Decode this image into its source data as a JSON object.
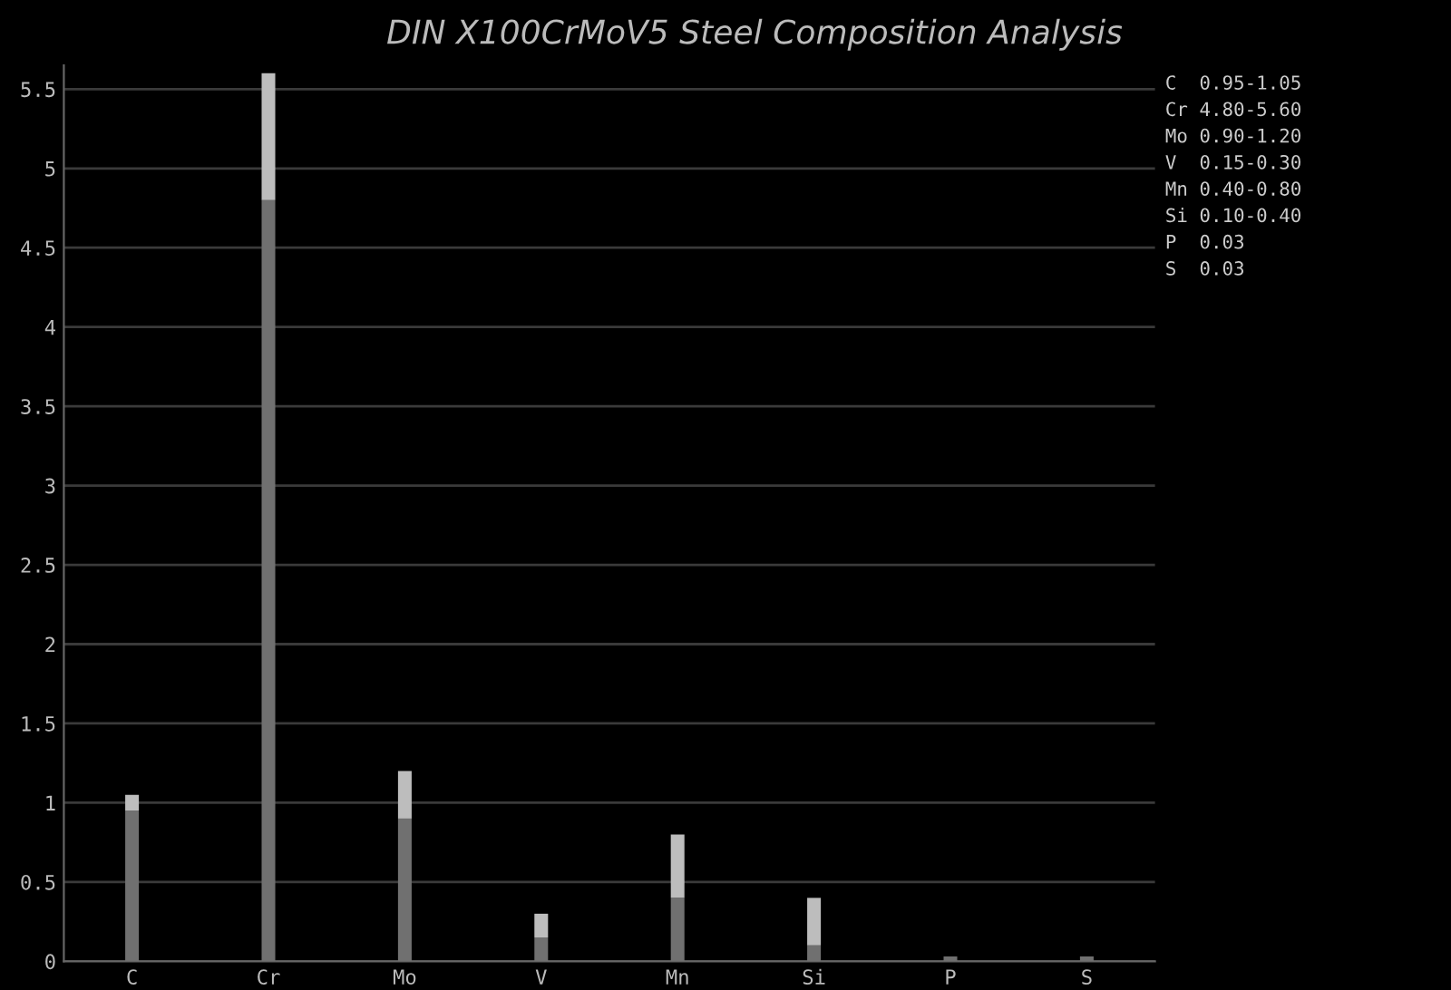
{
  "chart_data": {
    "type": "bar",
    "title": "DIN X100CrMoV5 Steel Composition Analysis",
    "categories": [
      "C",
      "Cr",
      "Mo",
      "V",
      "Mn",
      "Si",
      "P",
      "S"
    ],
    "stacked": true,
    "series": [
      {
        "color": "#707070",
        "values": [
          0.95,
          4.8,
          0.9,
          0.15,
          0.4,
          0.1,
          0.03,
          0.03
        ]
      },
      {
        "color": "#bdbdbd",
        "values": [
          0.1,
          0.8,
          0.3,
          0.15,
          0.4,
          0.3,
          0,
          0
        ]
      }
    ],
    "ylim": [
      0,
      5.65
    ],
    "yticks": [
      0,
      0.5,
      1,
      1.5,
      2,
      2.5,
      3,
      3.5,
      4,
      4.5,
      5,
      5.5
    ],
    "grid": "y",
    "annotations": [
      "C  0.95-1.05",
      "Cr 4.80-5.60",
      "Mo 0.90-1.20",
      "V  0.15-0.30",
      "Mn 0.40-0.80",
      "Si 0.10-0.40",
      "P  0.03",
      "S  0.03"
    ]
  }
}
